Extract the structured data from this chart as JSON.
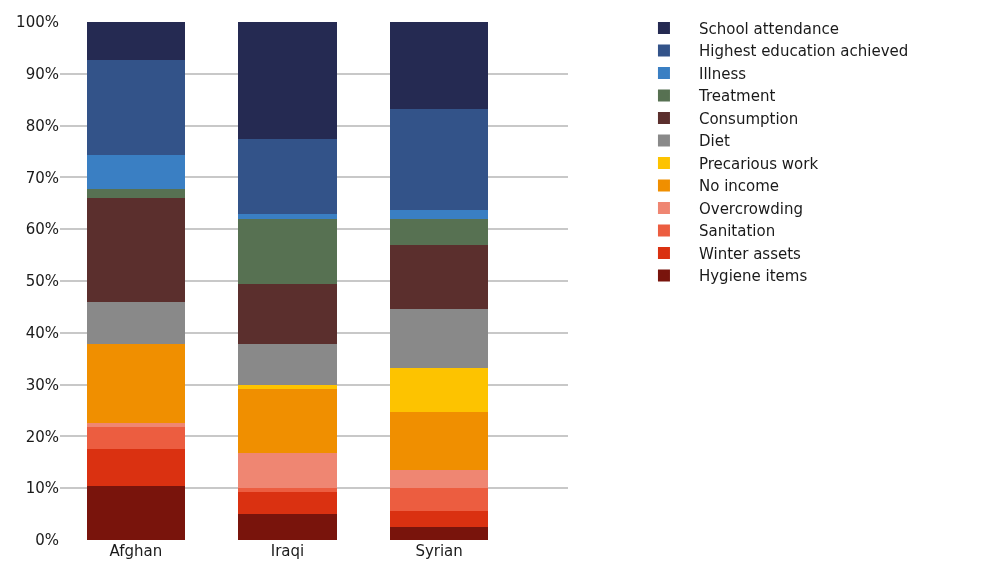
{
  "chart_data": {
    "type": "bar",
    "stacked": true,
    "categories": [
      "Afghan",
      "Iraqi",
      "Syrian"
    ],
    "series": [
      {
        "name": "Hygiene items",
        "color": "#79140c",
        "values": [
          10.4,
          5.1,
          2.5
        ]
      },
      {
        "name": "Winter assets",
        "color": "#da3111",
        "values": [
          7.1,
          4.2,
          3.1
        ]
      },
      {
        "name": "Sanitation",
        "color": "#ec5d40",
        "values": [
          4.3,
          0.8,
          4.5
        ]
      },
      {
        "name": "Overcrowding",
        "color": "#ef8672",
        "values": [
          0.8,
          6.6,
          3.5
        ]
      },
      {
        "name": "No income",
        "color": "#f08f00",
        "values": [
          15.3,
          12.5,
          11.1
        ]
      },
      {
        "name": "Precarious work",
        "color": "#fdc300",
        "values": [
          0,
          0.8,
          8.6
        ]
      },
      {
        "name": "Diet",
        "color": "#898989",
        "values": [
          8.0,
          7.9,
          11.3
        ]
      },
      {
        "name": "Consumption",
        "color": "#5b2f2d",
        "values": [
          20.1,
          11.5,
          12.4
        ]
      },
      {
        "name": "Treatment",
        "color": "#577152",
        "values": [
          1.7,
          12.5,
          4.9
        ]
      },
      {
        "name": "Illness",
        "color": "#3a7fc3",
        "values": [
          6.6,
          1.1,
          1.9
        ]
      },
      {
        "name": "Highest education achieved",
        "color": "#335389",
        "values": [
          18.3,
          14.4,
          19.5
        ]
      },
      {
        "name": "School attendance",
        "color": "#252a52",
        "values": [
          7.4,
          22.6,
          16.7
        ]
      }
    ],
    "ylim": [
      0,
      100
    ],
    "yticks": [
      {
        "value": 0,
        "label": "0%"
      },
      {
        "value": 10,
        "label": "10%"
      },
      {
        "value": 20,
        "label": "20%"
      },
      {
        "value": 30,
        "label": "30%"
      },
      {
        "value": 40,
        "label": "40%"
      },
      {
        "value": 50,
        "label": "50%"
      },
      {
        "value": 60,
        "label": "60%"
      },
      {
        "value": 70,
        "label": "70%"
      },
      {
        "value": 80,
        "label": "80%"
      },
      {
        "value": 90,
        "label": "90%"
      },
      {
        "value": 100,
        "label": "100%"
      }
    ],
    "grid": "y",
    "legend": "right"
  }
}
